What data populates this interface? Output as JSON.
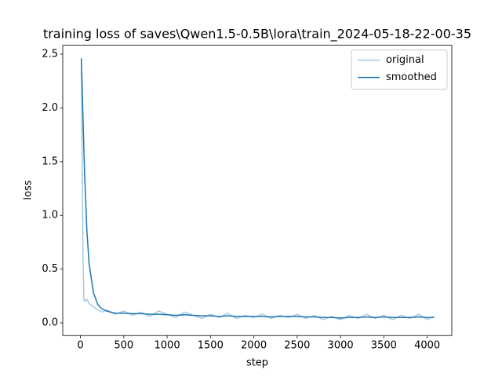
{
  "chart_data": {
    "type": "line",
    "title": "training loss of saves\\Qwen1.5-0.5B\\lora\\train_2024-05-18-22-00-35",
    "xlabel": "step",
    "ylabel": "loss",
    "x": [
      10,
      20,
      30,
      40,
      50,
      75,
      100,
      150,
      200,
      250,
      300,
      400,
      500,
      600,
      700,
      800,
      900,
      1000,
      1100,
      1200,
      1300,
      1400,
      1500,
      1600,
      1700,
      1800,
      1900,
      2000,
      2100,
      2200,
      2300,
      2400,
      2500,
      2600,
      2700,
      2800,
      2900,
      3000,
      3100,
      3200,
      3300,
      3400,
      3500,
      3600,
      3700,
      3800,
      3900,
      4000,
      4080
    ],
    "series": [
      {
        "name": "original",
        "color": "#a5c9e1",
        "values": [
          2.46,
          1.5,
          0.6,
          0.22,
          0.2,
          0.22,
          0.18,
          0.15,
          0.12,
          0.1,
          0.12,
          0.08,
          0.11,
          0.07,
          0.1,
          0.06,
          0.11,
          0.08,
          0.05,
          0.1,
          0.07,
          0.04,
          0.08,
          0.05,
          0.09,
          0.04,
          0.07,
          0.05,
          0.08,
          0.04,
          0.07,
          0.05,
          0.08,
          0.04,
          0.07,
          0.03,
          0.06,
          0.03,
          0.07,
          0.04,
          0.08,
          0.04,
          0.07,
          0.03,
          0.07,
          0.04,
          0.08,
          0.03,
          0.06
        ]
      },
      {
        "name": "smoothed",
        "color": "#1f77b4",
        "values": [
          2.46,
          2.2,
          1.9,
          1.6,
          1.35,
          0.85,
          0.55,
          0.28,
          0.17,
          0.13,
          0.11,
          0.09,
          0.09,
          0.085,
          0.085,
          0.08,
          0.08,
          0.075,
          0.07,
          0.075,
          0.07,
          0.065,
          0.065,
          0.06,
          0.065,
          0.06,
          0.06,
          0.06,
          0.06,
          0.055,
          0.06,
          0.06,
          0.06,
          0.055,
          0.055,
          0.05,
          0.05,
          0.045,
          0.05,
          0.05,
          0.055,
          0.05,
          0.055,
          0.05,
          0.05,
          0.05,
          0.055,
          0.05,
          0.05
        ]
      }
    ],
    "xlim": [
      -204,
      4284
    ],
    "xticks": [
      0,
      500,
      1000,
      1500,
      2000,
      2500,
      3000,
      3500,
      4000
    ],
    "ylim": [
      -0.118,
      2.583
    ],
    "yticks": [
      {
        "value": 0,
        "label": "0.0"
      },
      0.5,
      {
        "value": 1,
        "label": "1.0"
      },
      1.5,
      {
        "value": 2,
        "label": "2.0"
      },
      2.5
    ],
    "legend": "upper right",
    "grid": false
  }
}
